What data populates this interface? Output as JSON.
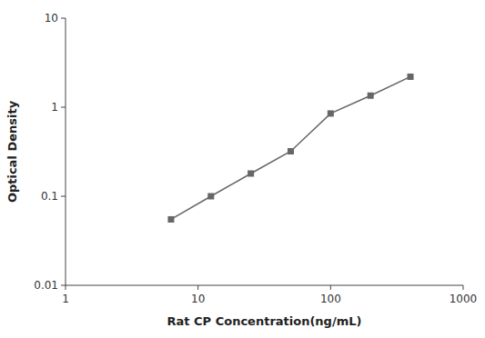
{
  "chart_data": {
    "type": "line",
    "x": [
      6.25,
      12.5,
      25,
      50,
      100,
      200,
      400
    ],
    "values": [
      0.055,
      0.1,
      0.18,
      0.32,
      0.85,
      1.35,
      2.2
    ],
    "xlabel": "Rat CP Concentration(ng/mL)",
    "ylabel": "Optical Density",
    "xlim": [
      1,
      1000
    ],
    "ylim": [
      0.01,
      10
    ],
    "xticks": [
      1,
      10,
      100,
      1000
    ],
    "yticks": [
      0.01,
      0.1,
      1,
      10
    ],
    "log": true,
    "color": "#666666",
    "marker": "square"
  }
}
